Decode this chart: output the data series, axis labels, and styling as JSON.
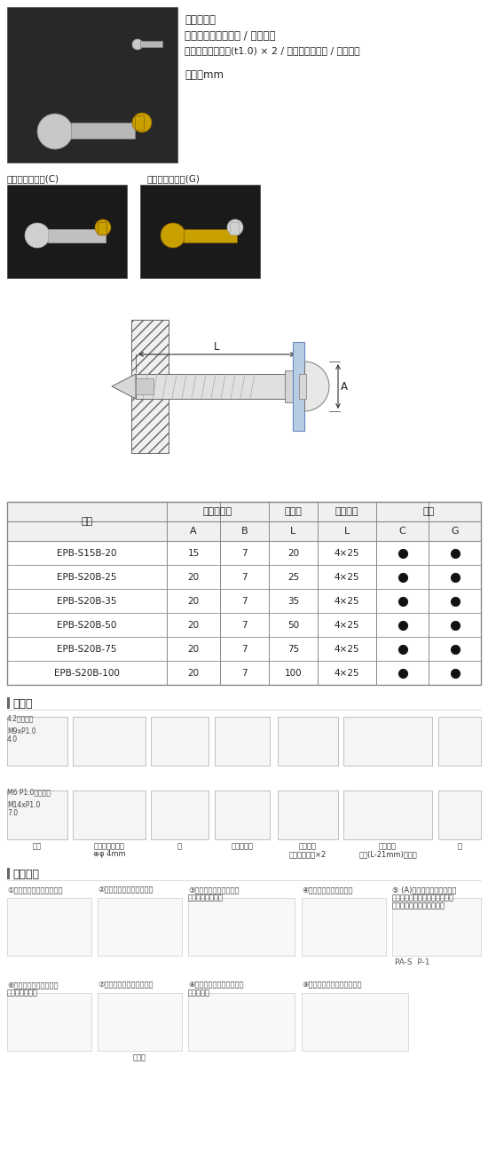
{
  "material_text": "材質：真鍮",
  "color_text": "色・仕上：クローム / ゴールド",
  "accessory_text": "付属品：パッキン(t1.0) × 2 / タッピングビス / 調整ネジ",
  "unit_text": "単位：mm",
  "label_chrome": "クロームメッキ(C)",
  "label_gold": "ゴールドメッキ(G)",
  "section_sundial": "寸法図",
  "section_install": "施工手順",
  "table_col1": "品番",
  "table_h1": [
    "化粧ボルト",
    "パイプ",
    "付属ビス",
    "仕上"
  ],
  "table_h2": [
    "A",
    "B",
    "L",
    "L",
    "C",
    "G"
  ],
  "table_rows": [
    [
      "EPB-S15B-20",
      "15",
      "7",
      "20",
      "4×25"
    ],
    [
      "EPB-S20B-25",
      "20",
      "7",
      "25",
      "4×25"
    ],
    [
      "EPB-S20B-35",
      "20",
      "7",
      "35",
      "4×25"
    ],
    [
      "EPB-S20B-50",
      "20",
      "7",
      "50",
      "4×25"
    ],
    [
      "EPB-S20B-75",
      "20",
      "7",
      "75",
      "4×25"
    ],
    [
      "EPB-S20B-100",
      "20",
      "7",
      "100",
      "4×25"
    ]
  ],
  "install_r1_labels": [
    "①圧金をネジ止めします。",
    "②胴部をネジ締めします。",
    "③調整ネジと調整リング\nをセットします。",
    "④胴部にセットします。",
    "⑤ (A)寸法を保ったまま調整\nリングを時計回りに回します。\n調整ネジが固定されます。"
  ],
  "install_r2_labels": [
    "⑥付属パッキンを上より\n差し込みます。",
    "⑦パネルを差し込みます。",
    "⑧前面にもパッキンを差し\n込みます。",
    "⑨頭部を締め込み完了です。"
  ],
  "pa_s": "PA-S  P-1",
  "panel_label": "パネル",
  "dim_component_labels": [
    "鑑金",
    "タッピングネジ\n⊕φ 4mm",
    "筒",
    "調整リング",
    "パッキン\n（カット前）×2",
    "調整ネジ\n標準(L-21mm)タイプ",
    "弧"
  ],
  "bg": "#ffffff",
  "dark_bg": "#222222",
  "gray_photo": "#1e1e1e"
}
